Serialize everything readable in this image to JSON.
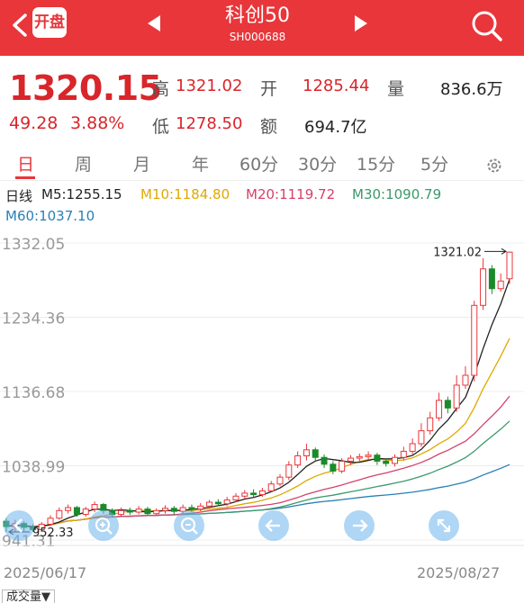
{
  "header": {
    "open_badge": "开盘",
    "title": "科创50",
    "code": "SH000688",
    "bg_color": "#e8363a"
  },
  "quote": {
    "price": "1320.15",
    "change": "49.28",
    "change_pct": "3.88%",
    "high_label": "高",
    "high": "1321.02",
    "open_label": "开",
    "open": "1285.44",
    "volume_label": "量",
    "volume": "836.6万",
    "low_label": "低",
    "low": "1278.50",
    "amount_label": "额",
    "amount": "694.7亿"
  },
  "tabs": [
    "日",
    "周",
    "月",
    "年",
    "60分",
    "30分",
    "15分",
    "5分"
  ],
  "ma": {
    "prefix": "日线",
    "m5": "M5:1255.15",
    "m10": "M10:1184.80",
    "m20": "M20:1119.72",
    "m30": "M30:1090.79",
    "m60": "M60:1037.10",
    "colors": {
      "m5": "#222222",
      "m10": "#e0a800",
      "m20": "#d6406b",
      "m30": "#3a9a6a",
      "m60": "#2a7fb5"
    }
  },
  "chart_data": {
    "type": "candlestick",
    "y_ticks": [
      "1332.05",
      "1234.36",
      "1136.68",
      "1038.99",
      "941.31"
    ],
    "y_values": [
      1332.05,
      1234.36,
      1136.68,
      1038.99,
      941.31
    ],
    "high_marker": "1321.02",
    "low_marker": "952.33",
    "x_start": "2025/06/17",
    "x_end": "2025/08/27",
    "up_color": "#e8363a",
    "down_color": "#1a8a2a",
    "candles": [
      [
        966,
        959,
        970,
        952
      ],
      [
        959,
        963,
        968,
        952
      ],
      [
        963,
        958,
        966,
        953
      ],
      [
        958,
        955,
        962,
        952
      ],
      [
        955,
        962,
        965,
        953
      ],
      [
        962,
        970,
        974,
        960
      ],
      [
        970,
        980,
        984,
        968
      ],
      [
        980,
        984,
        988,
        976
      ],
      [
        984,
        975,
        986,
        972
      ],
      [
        975,
        982,
        985,
        972
      ],
      [
        982,
        988,
        992,
        978
      ],
      [
        988,
        980,
        990,
        976
      ],
      [
        980,
        975,
        983,
        971
      ],
      [
        975,
        980,
        984,
        972
      ],
      [
        980,
        978,
        984,
        974
      ],
      [
        978,
        982,
        986,
        975
      ],
      [
        982,
        976,
        985,
        973
      ],
      [
        976,
        980,
        983,
        973
      ],
      [
        980,
        983,
        987,
        976
      ],
      [
        983,
        979,
        986,
        975
      ],
      [
        979,
        984,
        988,
        976
      ],
      [
        984,
        982,
        988,
        978
      ],
      [
        982,
        986,
        990,
        979
      ],
      [
        986,
        991,
        994,
        983
      ],
      [
        991,
        989,
        995,
        986
      ],
      [
        989,
        994,
        998,
        986
      ],
      [
        994,
        999,
        1003,
        991
      ],
      [
        999,
        1003,
        1007,
        996
      ],
      [
        1003,
        1001,
        1008,
        998
      ],
      [
        1001,
        1006,
        1010,
        998
      ],
      [
        1006,
        1015,
        1019,
        1004
      ],
      [
        1015,
        1024,
        1028,
        1012
      ],
      [
        1024,
        1040,
        1045,
        1020
      ],
      [
        1040,
        1052,
        1058,
        1036
      ],
      [
        1052,
        1060,
        1068,
        1046
      ],
      [
        1060,
        1050,
        1063,
        1045
      ],
      [
        1050,
        1041,
        1054,
        1036
      ],
      [
        1041,
        1032,
        1045,
        1028
      ],
      [
        1032,
        1045,
        1049,
        1029
      ],
      [
        1045,
        1049,
        1053,
        1040
      ],
      [
        1049,
        1051,
        1055,
        1045
      ],
      [
        1051,
        1053,
        1058,
        1047
      ],
      [
        1053,
        1045,
        1056,
        1040
      ],
      [
        1045,
        1042,
        1049,
        1038
      ],
      [
        1042,
        1050,
        1054,
        1038
      ],
      [
        1050,
        1058,
        1064,
        1046
      ],
      [
        1058,
        1068,
        1075,
        1054
      ],
      [
        1068,
        1085,
        1095,
        1064
      ],
      [
        1085,
        1102,
        1110,
        1080
      ],
      [
        1102,
        1125,
        1135,
        1098
      ],
      [
        1125,
        1115,
        1130,
        1108
      ],
      [
        1115,
        1145,
        1158,
        1110
      ],
      [
        1145,
        1158,
        1170,
        1140
      ],
      [
        1158,
        1250,
        1256,
        1150
      ],
      [
        1250,
        1298,
        1312,
        1244
      ],
      [
        1298,
        1272,
        1303,
        1265
      ],
      [
        1272,
        1282,
        1292,
        1268
      ],
      [
        1285,
        1320,
        1321,
        1278
      ]
    ]
  },
  "footer": {
    "volume_selector": "成交量▼"
  }
}
